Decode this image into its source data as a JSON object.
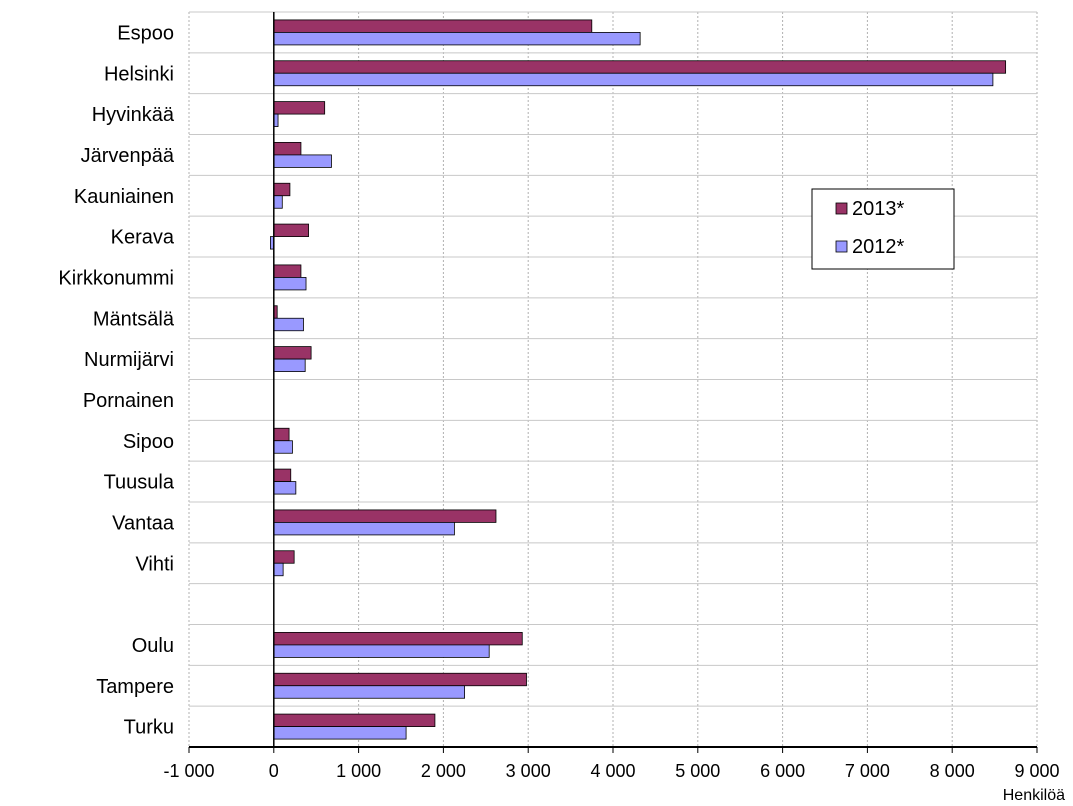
{
  "chart_data": {
    "type": "bar",
    "orientation": "horizontal",
    "categories": [
      "Espoo",
      "Helsinki",
      "Hyvinkää",
      "Järvenpää",
      "Kauniainen",
      "Kerava",
      "Kirkkonummi",
      "Mäntsälä",
      "Nurmijärvi",
      "Pornainen",
      "Sipoo",
      "Tuusula",
      "Vantaa",
      "Vihti",
      "",
      "Oulu",
      "Tampere",
      "Turku"
    ],
    "series": [
      {
        "name": "2013*",
        "color": "#993366",
        "values": [
          3750,
          8630,
          600,
          320,
          190,
          410,
          320,
          40,
          440,
          0,
          180,
          200,
          2620,
          240,
          null,
          2930,
          2980,
          1900
        ]
      },
      {
        "name": "2012*",
        "color": "#9999ff",
        "values": [
          4320,
          8480,
          50,
          680,
          100,
          -40,
          380,
          350,
          370,
          0,
          220,
          260,
          2130,
          110,
          null,
          2540,
          2250,
          1560
        ]
      }
    ],
    "xlim": [
      -1000,
      9000
    ],
    "xticks": [
      -1000,
      0,
      1000,
      2000,
      3000,
      4000,
      5000,
      6000,
      7000,
      8000,
      9000
    ],
    "xtick_labels": [
      "-1 000",
      "0",
      "1 000",
      "2 000",
      "3 000",
      "4 000",
      "5 000",
      "6 000",
      "7 000",
      "8 000",
      "9 000"
    ],
    "xlabel": "Henkilöä",
    "legend_position": "upper-right",
    "grid": "dotted vertical, solid horizontal category separators"
  }
}
